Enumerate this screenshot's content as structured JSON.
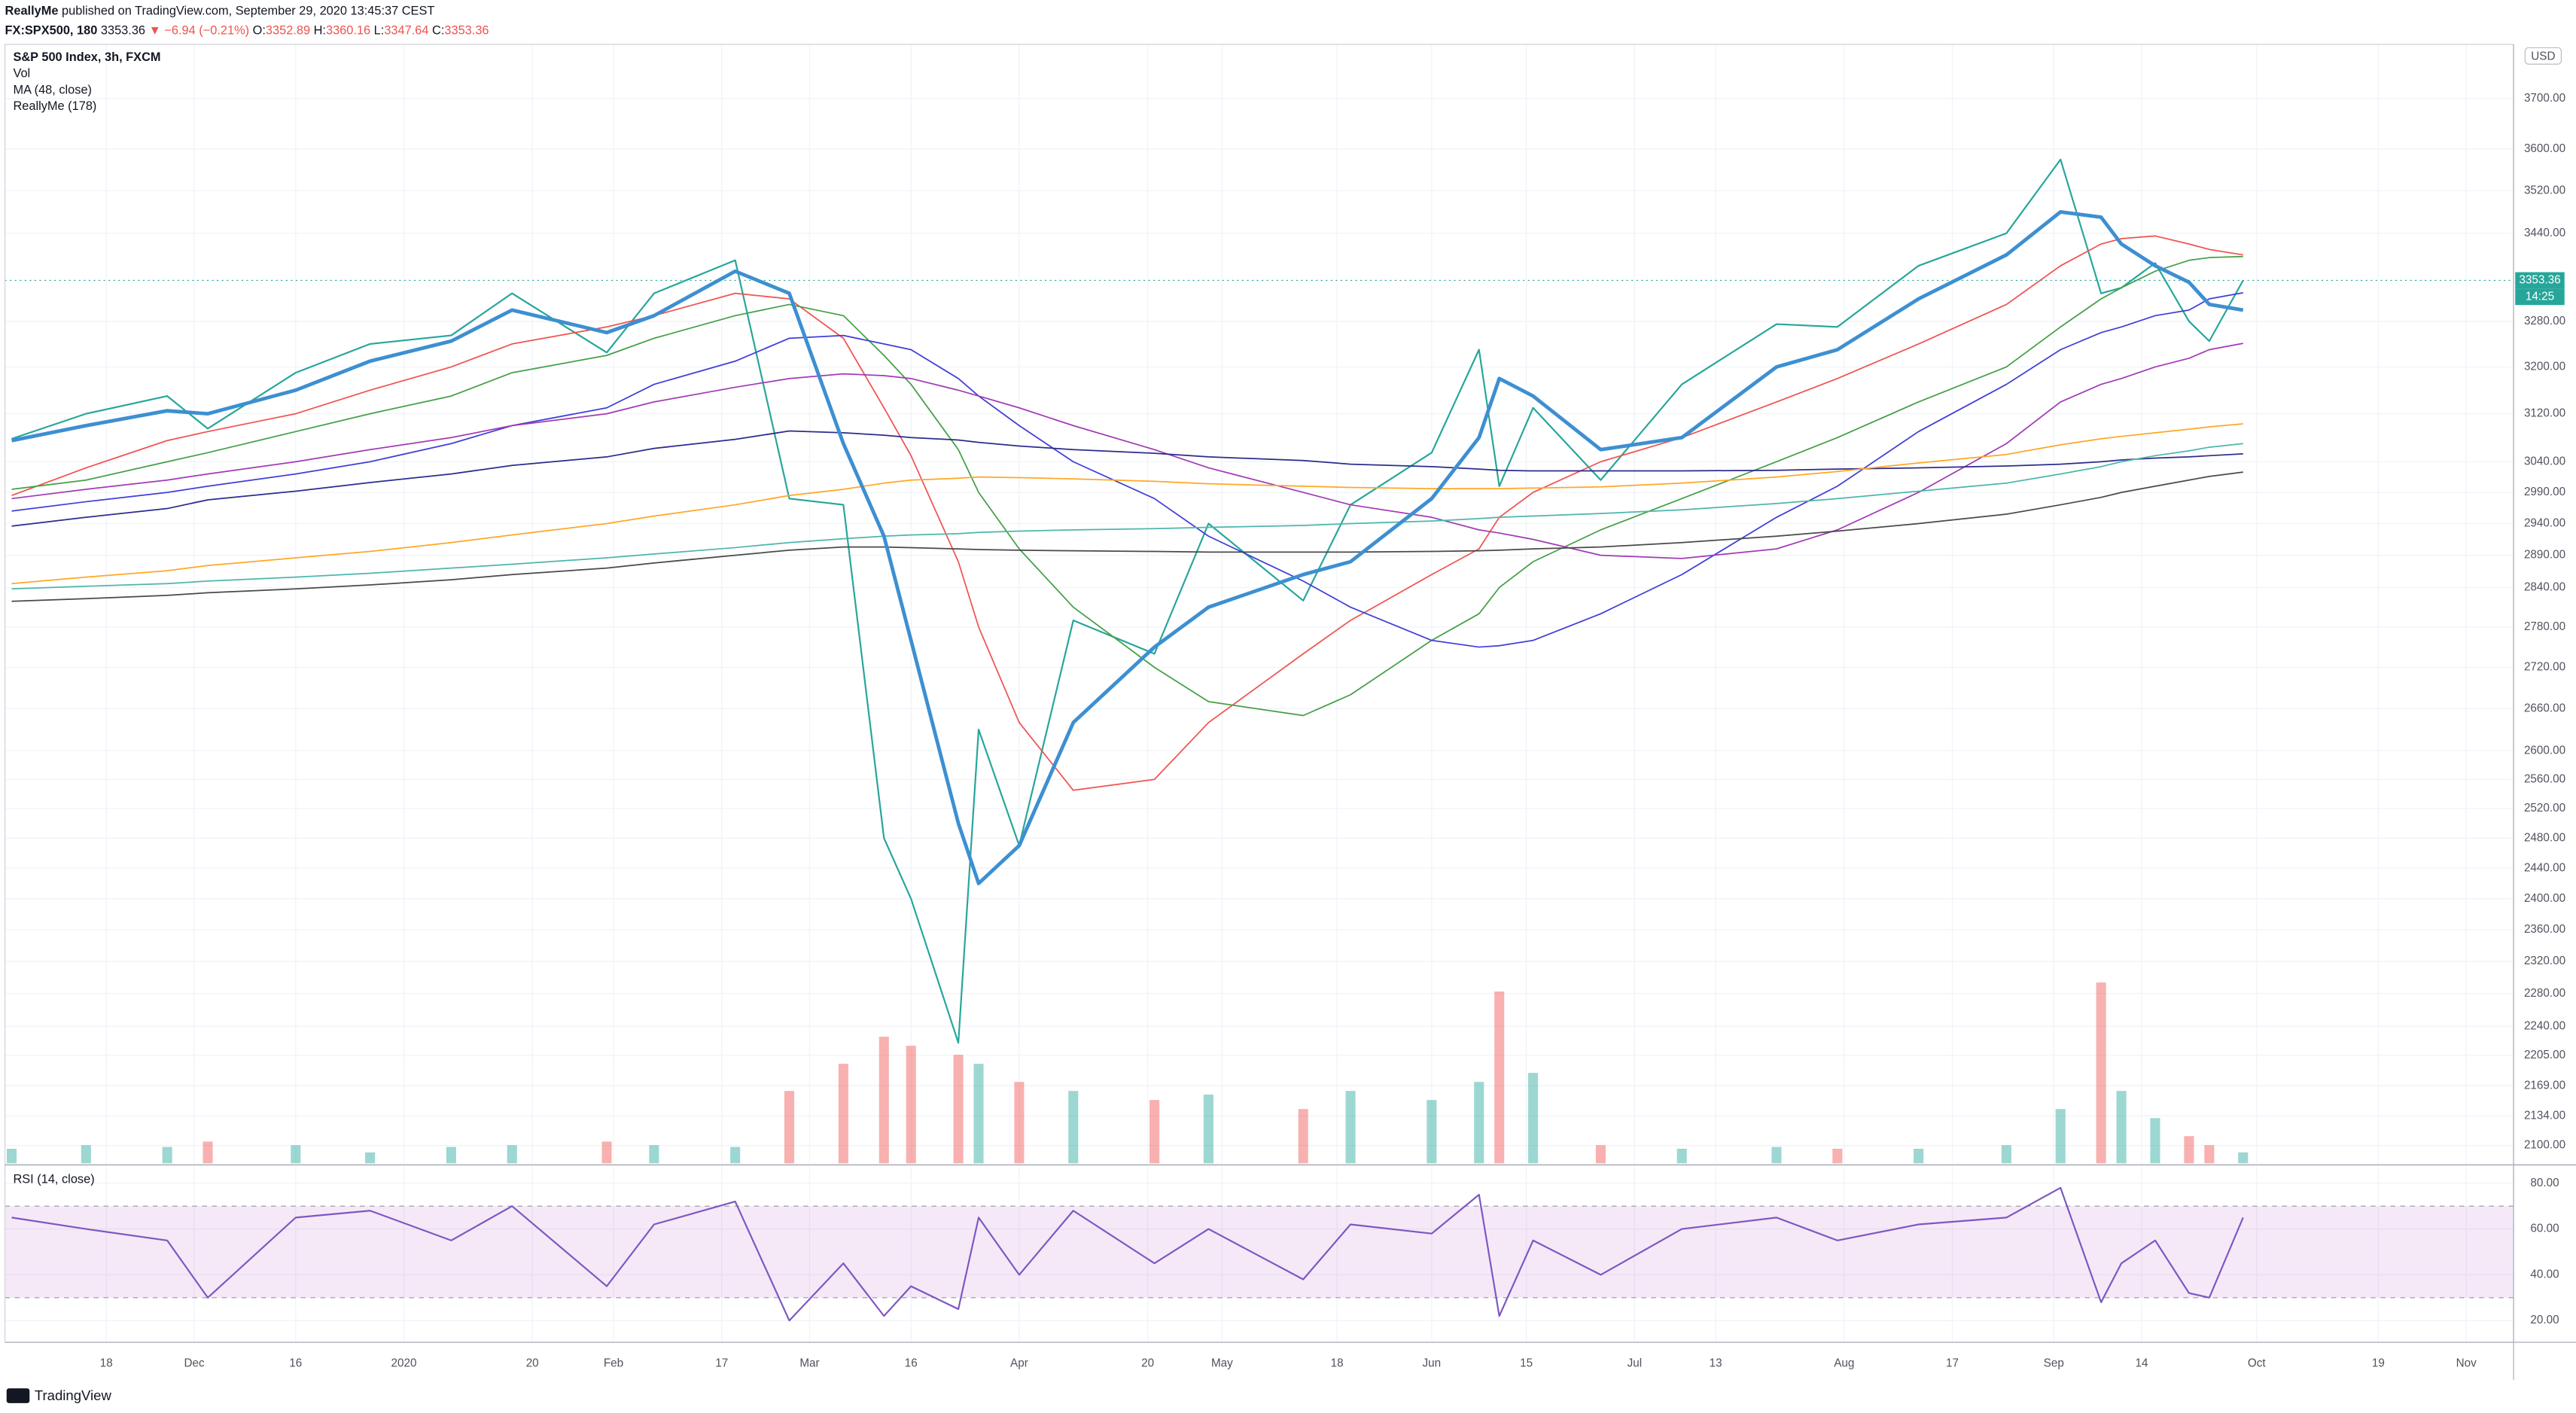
{
  "header": {
    "author": "ReallyMe",
    "published": "published on TradingView.com, September 29, 2020 13:45:37 CEST",
    "symbol": "FX:SPX500, 180",
    "last": "3353.36",
    "change": "▼ −6.94 (−0.21%)",
    "ohlc": [
      {
        "label": "O:",
        "value": "3352.89"
      },
      {
        "label": "H:",
        "value": "3360.16"
      },
      {
        "label": "L:",
        "value": "3347.64"
      },
      {
        "label": "C:",
        "value": "3353.36"
      }
    ]
  },
  "footer": {
    "brand": "TradingView"
  },
  "chart_data": [
    {
      "type": "line",
      "title": "S&P 500 Index, 3h, FXCM",
      "indicator_label": "ReallyMe (178)",
      "currency": "USD",
      "log_scale": true,
      "grid": true,
      "xlim": [
        "2019-11-03",
        "2020-11-08"
      ],
      "xticks": [
        {
          "value": "2019-11-18",
          "label": "18"
        },
        {
          "value": "2019-12-01",
          "label": "Dec"
        },
        {
          "value": "2019-12-16",
          "label": "16"
        },
        {
          "value": "2020-01-01",
          "label": "2020"
        },
        {
          "value": "2020-01-20",
          "label": "20"
        },
        {
          "value": "2020-02-01",
          "label": "Feb"
        },
        {
          "value": "2020-02-17",
          "label": "17"
        },
        {
          "value": "2020-03-01",
          "label": "Mar"
        },
        {
          "value": "2020-03-16",
          "label": "16"
        },
        {
          "value": "2020-04-01",
          "label": "Apr"
        },
        {
          "value": "2020-04-20",
          "label": "20"
        },
        {
          "value": "2020-05-01",
          "label": "May"
        },
        {
          "value": "2020-05-18",
          "label": "18"
        },
        {
          "value": "2020-06-01",
          "label": "Jun"
        },
        {
          "value": "2020-06-15",
          "label": "15"
        },
        {
          "value": "2020-07-01",
          "label": "Jul"
        },
        {
          "value": "2020-07-13",
          "label": "13"
        },
        {
          "value": "2020-08-01",
          "label": "Aug"
        },
        {
          "value": "2020-08-17",
          "label": "17"
        },
        {
          "value": "2020-09-01",
          "label": "Sep"
        },
        {
          "value": "2020-09-14",
          "label": "14"
        },
        {
          "value": "2020-10-01",
          "label": "Oct"
        },
        {
          "value": "2020-10-19",
          "label": "19"
        },
        {
          "value": "2020-11-01",
          "label": "Nov"
        }
      ],
      "ylim": [
        2080,
        3810
      ],
      "yticks": [
        {
          "value": 3700,
          "label": "3700.00"
        },
        {
          "value": 3600,
          "label": "3600.00"
        },
        {
          "value": 3520,
          "label": "3520.00"
        },
        {
          "value": 3440,
          "label": "3440.00"
        },
        {
          "value": 3280,
          "label": "3280.00"
        },
        {
          "value": 3200,
          "label": "3200.00"
        },
        {
          "value": 3120,
          "label": "3120.00"
        },
        {
          "value": 3040,
          "label": "3040.00"
        },
        {
          "value": 2990,
          "label": "2990.00"
        },
        {
          "value": 2940,
          "label": "2940.00"
        },
        {
          "value": 2890,
          "label": "2890.00"
        },
        {
          "value": 2840,
          "label": "2840.00"
        },
        {
          "value": 2780,
          "label": "2780.00"
        },
        {
          "value": 2720,
          "label": "2720.00"
        },
        {
          "value": 2660,
          "label": "2660.00"
        },
        {
          "value": 2600,
          "label": "2600.00"
        },
        {
          "value": 2560,
          "label": "2560.00"
        },
        {
          "value": 2520,
          "label": "2520.00"
        },
        {
          "value": 2480,
          "label": "2480.00"
        },
        {
          "value": 2440,
          "label": "2440.00"
        },
        {
          "value": 2400,
          "label": "2400.00"
        },
        {
          "value": 2360,
          "label": "2360.00"
        },
        {
          "value": 2320,
          "label": "2320.00"
        },
        {
          "value": 2280,
          "label": "2280.00"
        },
        {
          "value": 2240,
          "label": "2240.00"
        },
        {
          "value": 2205,
          "label": "2205.00"
        },
        {
          "value": 2169,
          "label": "2169.00"
        },
        {
          "value": 2134,
          "label": "2134.00"
        },
        {
          "value": 2100,
          "label": "2100.00"
        }
      ],
      "last_price": 3353.36,
      "countdown": "14:25",
      "up_color": "#26a69a",
      "down_color": "#ef5350",
      "x": [
        "2019-11-04",
        "2019-11-15",
        "2019-11-27",
        "2019-12-03",
        "2019-12-16",
        "2019-12-27",
        "2020-01-08",
        "2020-01-17",
        "2020-01-31",
        "2020-02-07",
        "2020-02-19",
        "2020-02-27",
        "2020-03-06",
        "2020-03-12",
        "2020-03-16",
        "2020-03-23",
        "2020-03-26",
        "2020-04-01",
        "2020-04-09",
        "2020-04-21",
        "2020-04-29",
        "2020-05-13",
        "2020-05-20",
        "2020-06-01",
        "2020-06-08",
        "2020-06-11",
        "2020-06-16",
        "2020-06-26",
        "2020-07-08",
        "2020-07-22",
        "2020-07-31",
        "2020-08-12",
        "2020-08-25",
        "2020-09-02",
        "2020-09-08",
        "2020-09-11",
        "2020-09-16",
        "2020-09-21",
        "2020-09-24",
        "2020-09-29"
      ],
      "volume": {
        "name": "Vol",
        "values": [
          8,
          10,
          9,
          12,
          10,
          6,
          9,
          10,
          12,
          10,
          9,
          40,
          55,
          70,
          65,
          60,
          55,
          45,
          40,
          35,
          38,
          30,
          40,
          35,
          45,
          95,
          50,
          10,
          8,
          9,
          8,
          8,
          10,
          30,
          100,
          40,
          25,
          15,
          10,
          6
        ]
      },
      "series": [
        {
          "color": "#26a69a",
          "width": 1,
          "values": [
            3078,
            3120,
            3150,
            3095,
            3190,
            3240,
            3255,
            3330,
            3225,
            3330,
            3390,
            2980,
            2970,
            2480,
            2400,
            2220,
            2630,
            2470,
            2790,
            2740,
            2940,
            2820,
            2970,
            3055,
            3230,
            3000,
            3130,
            3010,
            3170,
            3275,
            3270,
            3380,
            3440,
            3580,
            3330,
            3340,
            3385,
            3280,
            3245,
            3353.36
          ]
        },
        {
          "name": "MA (48, close)",
          "color": "#3d8fd1",
          "width": 2.2,
          "values": [
            3075,
            3100,
            3125,
            3120,
            3160,
            3210,
            3245,
            3300,
            3260,
            3290,
            3370,
            3330,
            3070,
            2920,
            2760,
            2500,
            2420,
            2470,
            2640,
            2750,
            2810,
            2860,
            2880,
            2980,
            3080,
            3180,
            3150,
            3060,
            3080,
            3200,
            3230,
            3320,
            3400,
            3480,
            3470,
            3420,
            3380,
            3350,
            3310,
            3300
          ]
        },
        {
          "color": "#f05350",
          "width": 0.8,
          "values": [
            2985,
            3030,
            3075,
            3090,
            3120,
            3160,
            3200,
            3240,
            3270,
            3290,
            3330,
            3320,
            3250,
            3130,
            3050,
            2880,
            2780,
            2640,
            2545,
            2560,
            2640,
            2740,
            2790,
            2860,
            2900,
            2950,
            2990,
            3040,
            3080,
            3140,
            3180,
            3240,
            3310,
            3380,
            3420,
            3430,
            3435,
            3420,
            3410,
            3400
          ]
        },
        {
          "color": "#43a047",
          "width": 0.8,
          "values": [
            2995,
            3010,
            3040,
            3055,
            3090,
            3120,
            3150,
            3190,
            3220,
            3250,
            3290,
            3310,
            3290,
            3220,
            3170,
            3060,
            2990,
            2900,
            2810,
            2720,
            2670,
            2650,
            2680,
            2760,
            2800,
            2840,
            2880,
            2930,
            2980,
            3040,
            3080,
            3140,
            3200,
            3270,
            3320,
            3340,
            3370,
            3390,
            3395,
            3397
          ]
        },
        {
          "color": "#3f3fd8",
          "width": 0.8,
          "values": [
            2960,
            2975,
            2990,
            3000,
            3020,
            3040,
            3070,
            3100,
            3130,
            3170,
            3210,
            3250,
            3255,
            3240,
            3230,
            3180,
            3150,
            3100,
            3040,
            2980,
            2920,
            2850,
            2810,
            2760,
            2750,
            2752,
            2760,
            2800,
            2860,
            2950,
            3000,
            3090,
            3170,
            3230,
            3260,
            3270,
            3290,
            3300,
            3320,
            3331
          ]
        },
        {
          "color": "#a23bb5",
          "width": 0.8,
          "values": [
            2980,
            2995,
            3010,
            3020,
            3040,
            3060,
            3080,
            3100,
            3120,
            3140,
            3165,
            3180,
            3188,
            3185,
            3180,
            3160,
            3150,
            3130,
            3100,
            3060,
            3030,
            2990,
            2970,
            2950,
            2930,
            2925,
            2915,
            2890,
            2885,
            2900,
            2930,
            2990,
            3070,
            3140,
            3170,
            3180,
            3200,
            3215,
            3230,
            3241
          ]
        },
        {
          "color": "#2c2c8c",
          "width": 0.8,
          "values": [
            2936,
            2950,
            2964,
            2978,
            2992,
            3006,
            3020,
            3034,
            3048,
            3062,
            3077,
            3091,
            3088,
            3084,
            3080,
            3076,
            3072,
            3066,
            3060,
            3054,
            3048,
            3042,
            3036,
            3032,
            3028,
            3026,
            3025,
            3025,
            3025,
            3026,
            3028,
            3030,
            3033,
            3036,
            3040,
            3043,
            3046,
            3048,
            3050,
            3053
          ]
        },
        {
          "color": "#ffa726",
          "width": 0.8,
          "values": [
            2846,
            2856,
            2866,
            2874,
            2886,
            2896,
            2910,
            2922,
            2940,
            2952,
            2970,
            2985,
            2995,
            3005,
            3010,
            3013,
            3015,
            3014,
            3012,
            3008,
            3004,
            3000,
            2998,
            2996,
            2996,
            2996,
            2997,
            2999,
            3005,
            3015,
            3024,
            3038,
            3052,
            3068,
            3078,
            3082,
            3088,
            3094,
            3098,
            3103
          ]
        },
        {
          "color": "#4db6ac",
          "width": 0.8,
          "values": [
            2838,
            2842,
            2846,
            2850,
            2856,
            2862,
            2870,
            2876,
            2886,
            2892,
            2902,
            2910,
            2916,
            2920,
            2922,
            2924,
            2926,
            2928,
            2930,
            2932,
            2934,
            2937,
            2940,
            2944,
            2948,
            2950,
            2952,
            2956,
            2962,
            2972,
            2980,
            2992,
            3005,
            3020,
            3032,
            3040,
            3050,
            3058,
            3064,
            3070
          ]
        },
        {
          "color": "#4a4a4a",
          "width": 0.8,
          "values": [
            2819,
            2823,
            2828,
            2832,
            2838,
            2844,
            2852,
            2860,
            2870,
            2878,
            2890,
            2898,
            2903,
            2903,
            2902,
            2900,
            2899,
            2898,
            2897,
            2896,
            2895,
            2895,
            2895,
            2896,
            2897,
            2898,
            2900,
            2903,
            2910,
            2920,
            2928,
            2940,
            2955,
            2970,
            2982,
            2990,
            3000,
            3010,
            3016,
            3023
          ]
        }
      ]
    },
    {
      "type": "line",
      "title": "RSI (14, close)",
      "ylim": [
        10.5,
        87.3
      ],
      "band": [
        30,
        70
      ],
      "band_color": "#9c27b0",
      "yticks": [
        {
          "value": 80,
          "label": "80.00"
        },
        {
          "value": 60,
          "label": "60.00"
        },
        {
          "value": 40,
          "label": "40.00"
        },
        {
          "value": 20,
          "label": "20.00"
        }
      ],
      "series": [
        {
          "color": "#7e57c2",
          "values": [
            65,
            60,
            55,
            30,
            65,
            68,
            55,
            70,
            35,
            62,
            72,
            20,
            45,
            22,
            35,
            25,
            65,
            40,
            68,
            45,
            60,
            38,
            62,
            58,
            75,
            22,
            55,
            40,
            60,
            65,
            55,
            62,
            65,
            78,
            28,
            45,
            55,
            32,
            30,
            65
          ]
        }
      ]
    }
  ]
}
